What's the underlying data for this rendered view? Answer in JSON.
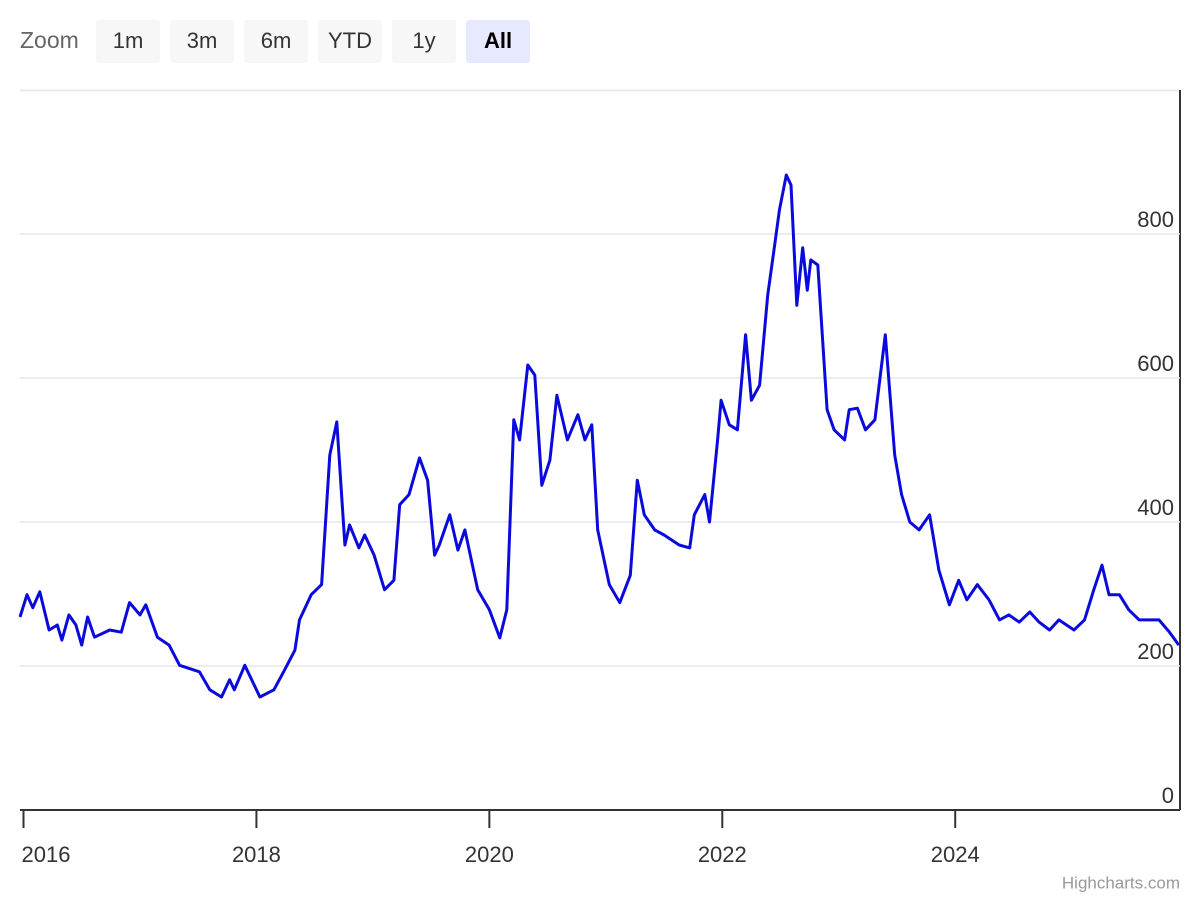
{
  "range_selector": {
    "label": "Zoom",
    "buttons": [
      "1m",
      "3m",
      "6m",
      "YTD",
      "1y",
      "All"
    ],
    "selected": 5
  },
  "chart_data": {
    "type": "line",
    "color": "#0a0adc",
    "x": [
      2015.97,
      2016.03,
      2016.08,
      2016.14,
      2016.22,
      2016.29,
      2016.33,
      2016.39,
      2016.45,
      2016.5,
      2016.55,
      2016.61,
      2016.74,
      2016.84,
      2016.91,
      2017.0,
      2017.05,
      2017.15,
      2017.25,
      2017.34,
      2017.51,
      2017.6,
      2017.7,
      2017.77,
      2017.81,
      2017.9,
      2018.03,
      2018.15,
      2018.24,
      2018.33,
      2018.37,
      2018.47,
      2018.56,
      2018.63,
      2018.69,
      2018.76,
      2018.8,
      2018.88,
      2018.93,
      2019.01,
      2019.1,
      2019.18,
      2019.23,
      2019.31,
      2019.4,
      2019.47,
      2019.53,
      2019.57,
      2019.66,
      2019.73,
      2019.79,
      2019.9,
      2020.0,
      2020.09,
      2020.15,
      2020.21,
      2020.26,
      2020.33,
      2020.39,
      2020.45,
      2020.52,
      2020.58,
      2020.67,
      2020.76,
      2020.82,
      2020.88,
      2020.93,
      2021.03,
      2021.12,
      2021.21,
      2021.27,
      2021.33,
      2021.42,
      2021.5,
      2021.63,
      2021.72,
      2021.76,
      2021.85,
      2021.89,
      2021.96,
      2021.99,
      2022.06,
      2022.13,
      2022.2,
      2022.25,
      2022.32,
      2022.39,
      2022.45,
      2022.49,
      2022.55,
      2022.59,
      2022.64,
      2022.69,
      2022.73,
      2022.76,
      2022.82,
      2022.9,
      2022.96,
      2023.05,
      2023.09,
      2023.16,
      2023.23,
      2023.31,
      2023.4,
      2023.48,
      2023.54,
      2023.61,
      2023.69,
      2023.78,
      2023.86,
      2023.95,
      2024.03,
      2024.1,
      2024.19,
      2024.29,
      2024.38,
      2024.46,
      2024.55,
      2024.64,
      2024.72,
      2024.81,
      2024.89,
      2025.02,
      2025.11,
      2025.19,
      2025.26,
      2025.32,
      2025.41,
      2025.49,
      2025.58,
      2025.67,
      2025.75,
      2025.84,
      2025.92
    ],
    "values": [
      268,
      299,
      281,
      303,
      250,
      257,
      236,
      271,
      257,
      229,
      268,
      240,
      250,
      247,
      288,
      271,
      285,
      240,
      229,
      201,
      192,
      167,
      157,
      181,
      167,
      201,
      157,
      167,
      194,
      222,
      264,
      299,
      313,
      493,
      539,
      368,
      396,
      364,
      382,
      354,
      306,
      319,
      424,
      438,
      489,
      458,
      354,
      368,
      410,
      361,
      389,
      306,
      278,
      239,
      278,
      542,
      514,
      618,
      604,
      451,
      486,
      576,
      514,
      549,
      514,
      535,
      389,
      313,
      288,
      326,
      458,
      410,
      389,
      382,
      368,
      364,
      410,
      438,
      400,
      514,
      569,
      535,
      528,
      660,
      569,
      590,
      715,
      785,
      833,
      882,
      868,
      701,
      781,
      722,
      764,
      757,
      556,
      528,
      514,
      556,
      558,
      528,
      542,
      660,
      493,
      438,
      400,
      389,
      410,
      333,
      285,
      319,
      292,
      313,
      292,
      264,
      271,
      261,
      275,
      261,
      250,
      264,
      250,
      264,
      306,
      340,
      299,
      299,
      278,
      264,
      264,
      264,
      247,
      229
    ],
    "xlim": [
      2015.97,
      2025.93
    ],
    "xticks": [
      2016,
      2018,
      2020,
      2022,
      2024
    ],
    "ylim": [
      0,
      1000
    ],
    "yticks": [
      0,
      200,
      400,
      600,
      800
    ],
    "grid": true
  },
  "credits": "Highcharts.com"
}
